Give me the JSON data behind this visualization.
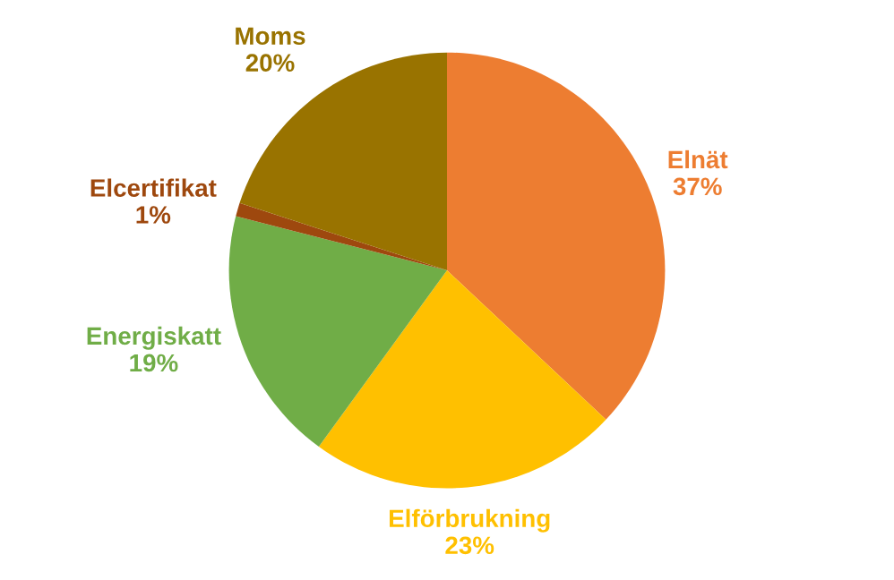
{
  "chart_data": {
    "type": "pie",
    "categories": [
      "Elnät",
      "Elförbrukning",
      "Energiskatt",
      "Elcertifikat",
      "Moms"
    ],
    "values": [
      37,
      23,
      19,
      1,
      20
    ],
    "value_labels": [
      "37%",
      "23%",
      "19%",
      "1%",
      "20%"
    ],
    "colors": [
      "#ed7d31",
      "#ffc000",
      "#70ad47",
      "#9e480e",
      "#997300"
    ]
  }
}
